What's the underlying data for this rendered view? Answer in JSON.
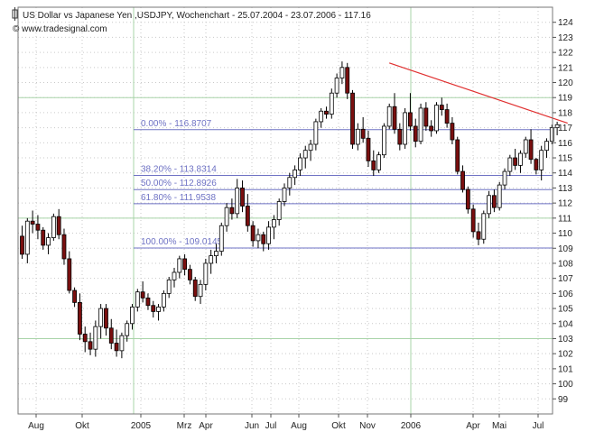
{
  "chart_data": {
    "type": "candlestick",
    "title": "US Dollar vs Japanese Yen ,USDJPY, Wochenchart - 25.07.2004 - 23.07.2006 - 117.16",
    "subtitle": "© www.tradesignal.com",
    "ylim": [
      98,
      125
    ],
    "yticks": [
      99,
      100,
      101,
      102,
      103,
      104,
      105,
      106,
      107,
      108,
      109,
      110,
      111,
      112,
      113,
      114,
      115,
      116,
      117,
      118,
      119,
      120,
      121,
      122,
      123,
      124
    ],
    "xlabels": [
      "Aug",
      "Okt",
      "2005",
      "Mrz",
      "Apr",
      "Jun",
      "Jul",
      "Aug",
      "Okt",
      "Nov",
      "2006",
      "Apr",
      "Mai",
      "Jul"
    ],
    "grid": "dotted",
    "fibonacci": [
      {
        "label": "0.00% - 116.8707",
        "value": 116.8707
      },
      {
        "label": "38.20% - 113.8314",
        "value": 113.8314
      },
      {
        "label": "50.00% - 112.8926",
        "value": 112.8926
      },
      {
        "label": "61.80% - 111.9538",
        "value": 111.9538
      },
      {
        "label": "100.00% - 109.0145",
        "value": 109.0145
      }
    ],
    "trendline": {
      "from_week": 70,
      "from_value": 121.3,
      "to_week": 104,
      "to_value": 117.3
    },
    "candles": [
      [
        109.8,
        110.5,
        108.3,
        108.6
      ],
      [
        108.6,
        111.0,
        108.0,
        110.8
      ],
      [
        110.8,
        111.5,
        110.0,
        110.6
      ],
      [
        110.6,
        111.2,
        109.6,
        110.2
      ],
      [
        110.2,
        110.4,
        108.9,
        109.2
      ],
      [
        109.2,
        110.0,
        108.6,
        109.7
      ],
      [
        109.7,
        111.3,
        109.5,
        111.1
      ],
      [
        111.1,
        111.6,
        109.6,
        109.9
      ],
      [
        109.9,
        110.3,
        107.9,
        108.3
      ],
      [
        108.3,
        108.8,
        106.0,
        106.2
      ],
      [
        106.2,
        106.4,
        105.1,
        105.4
      ],
      [
        105.4,
        106.0,
        102.9,
        103.3
      ],
      [
        103.3,
        103.8,
        102.1,
        102.8
      ],
      [
        102.8,
        103.4,
        101.9,
        102.3
      ],
      [
        102.3,
        104.2,
        101.8,
        103.8
      ],
      [
        103.8,
        105.3,
        103.0,
        105.0
      ],
      [
        105.0,
        105.3,
        103.2,
        103.7
      ],
      [
        103.7,
        104.3,
        102.3,
        102.7
      ],
      [
        102.7,
        103.6,
        101.8,
        102.2
      ],
      [
        102.2,
        103.4,
        101.7,
        103.2
      ],
      [
        103.2,
        104.2,
        102.8,
        104.0
      ],
      [
        104.0,
        105.3,
        103.6,
        105.1
      ],
      [
        105.1,
        106.3,
        104.8,
        106.1
      ],
      [
        106.1,
        106.8,
        105.4,
        105.7
      ],
      [
        105.7,
        106.0,
        104.9,
        105.2
      ],
      [
        105.2,
        105.5,
        104.4,
        104.8
      ],
      [
        104.8,
        105.3,
        104.2,
        105.1
      ],
      [
        105.1,
        106.2,
        104.8,
        106.0
      ],
      [
        106.0,
        107.1,
        105.7,
        106.9
      ],
      [
        106.9,
        107.7,
        106.4,
        107.4
      ],
      [
        107.4,
        108.5,
        107.0,
        108.3
      ],
      [
        108.3,
        108.6,
        107.2,
        107.6
      ],
      [
        107.6,
        107.9,
        106.6,
        106.9
      ],
      [
        106.9,
        107.1,
        105.5,
        105.8
      ],
      [
        105.8,
        106.9,
        105.3,
        106.6
      ],
      [
        106.6,
        108.3,
        106.2,
        108.0
      ],
      [
        108.0,
        108.9,
        107.3,
        108.5
      ],
      [
        108.5,
        109.3,
        108.0,
        108.8
      ],
      [
        108.8,
        110.7,
        108.5,
        110.5
      ],
      [
        110.5,
        112.0,
        110.1,
        111.7
      ],
      [
        111.7,
        112.3,
        110.9,
        111.3
      ],
      [
        111.3,
        113.6,
        111.0,
        113.0
      ],
      [
        113.0,
        113.5,
        111.4,
        111.8
      ],
      [
        111.8,
        112.6,
        110.1,
        110.5
      ],
      [
        110.5,
        110.8,
        109.1,
        109.5
      ],
      [
        109.5,
        110.3,
        109.0,
        109.9
      ],
      [
        109.9,
        110.1,
        108.8,
        109.3
      ],
      [
        109.3,
        110.8,
        108.9,
        110.4
      ],
      [
        110.4,
        111.2,
        109.6,
        110.9
      ],
      [
        110.9,
        112.3,
        110.5,
        112.1
      ],
      [
        112.1,
        113.3,
        111.8,
        113.0
      ],
      [
        113.0,
        114.0,
        112.5,
        113.7
      ],
      [
        113.7,
        114.5,
        113.2,
        114.2
      ],
      [
        114.2,
        115.3,
        113.8,
        115.0
      ],
      [
        115.0,
        115.8,
        114.3,
        115.5
      ],
      [
        115.5,
        116.2,
        114.8,
        115.9
      ],
      [
        115.9,
        117.6,
        115.5,
        117.4
      ],
      [
        117.4,
        118.3,
        117.0,
        118.1
      ],
      [
        118.1,
        118.4,
        117.6,
        117.9
      ],
      [
        117.9,
        119.6,
        117.6,
        119.3
      ],
      [
        119.3,
        120.6,
        119.0,
        120.3
      ],
      [
        120.3,
        121.4,
        119.9,
        121.0
      ],
      [
        121.0,
        121.3,
        118.9,
        119.3
      ],
      [
        119.3,
        119.5,
        115.6,
        115.9
      ],
      [
        115.9,
        117.3,
        115.5,
        116.9
      ],
      [
        116.9,
        117.7,
        116.0,
        116.3
      ],
      [
        116.3,
        116.8,
        114.4,
        114.8
      ],
      [
        114.8,
        115.5,
        113.8,
        114.2
      ],
      [
        114.2,
        115.4,
        114.0,
        115.2
      ],
      [
        115.2,
        117.3,
        115.0,
        117.1
      ],
      [
        117.1,
        118.6,
        116.9,
        118.4
      ],
      [
        118.4,
        119.3,
        116.6,
        116.9
      ],
      [
        116.9,
        117.3,
        115.5,
        115.9
      ],
      [
        115.9,
        118.3,
        115.6,
        118.0
      ],
      [
        118.0,
        119.3,
        116.8,
        117.1
      ],
      [
        117.1,
        117.6,
        115.7,
        116.1
      ],
      [
        116.1,
        118.6,
        115.9,
        118.3
      ],
      [
        118.3,
        118.7,
        116.8,
        117.1
      ],
      [
        117.1,
        117.5,
        116.4,
        116.8
      ],
      [
        116.8,
        118.7,
        116.6,
        118.5
      ],
      [
        118.5,
        119.0,
        117.8,
        118.2
      ],
      [
        118.2,
        118.6,
        117.0,
        117.3
      ],
      [
        117.3,
        117.7,
        115.9,
        116.2
      ],
      [
        116.2,
        116.4,
        113.9,
        114.1
      ],
      [
        114.1,
        114.5,
        112.7,
        112.9
      ],
      [
        112.9,
        113.1,
        111.3,
        111.6
      ],
      [
        111.6,
        111.9,
        109.7,
        110.1
      ],
      [
        110.1,
        110.7,
        109.2,
        109.6
      ],
      [
        109.6,
        111.5,
        109.3,
        111.3
      ],
      [
        111.3,
        112.8,
        111.0,
        112.5
      ],
      [
        112.5,
        112.9,
        111.4,
        111.7
      ],
      [
        111.7,
        113.4,
        111.5,
        113.2
      ],
      [
        113.2,
        114.3,
        112.9,
        114.1
      ],
      [
        114.1,
        115.2,
        113.8,
        115.0
      ],
      [
        115.0,
        115.6,
        114.2,
        114.5
      ],
      [
        114.5,
        115.5,
        114.0,
        115.3
      ],
      [
        115.3,
        116.4,
        115.0,
        116.2
      ],
      [
        116.2,
        116.9,
        114.6,
        114.9
      ],
      [
        114.9,
        115.0,
        113.9,
        114.2
      ],
      [
        114.2,
        115.8,
        113.5,
        115.5
      ],
      [
        115.5,
        116.3,
        115.0,
        116.1
      ],
      [
        116.1,
        117.2,
        115.9,
        117.0
      ],
      [
        117.0,
        117.4,
        116.5,
        117.2
      ]
    ]
  }
}
